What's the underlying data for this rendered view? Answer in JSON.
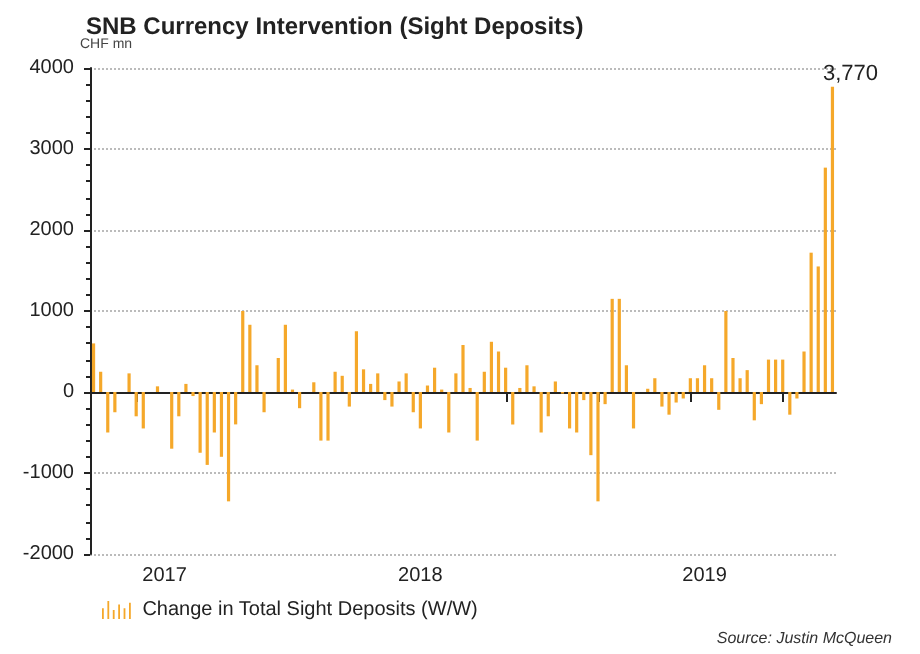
{
  "chart_data": {
    "type": "bar",
    "title": "SNB Currency Intervention (Sight Deposits)",
    "ylabel": "CHF mn",
    "categories": [
      null,
      null,
      null,
      null,
      null,
      null,
      null,
      null,
      null,
      null,
      "2017",
      null,
      null,
      null,
      null,
      null,
      null,
      null,
      null,
      null,
      null,
      null,
      null,
      null,
      null,
      null,
      null,
      null,
      null,
      null,
      null,
      null,
      null,
      null,
      null,
      null,
      null,
      null,
      null,
      null,
      null,
      null,
      null,
      null,
      null,
      null,
      "2018",
      null,
      null,
      null,
      null,
      null,
      null,
      null,
      null,
      null,
      null,
      null,
      null,
      null,
      null,
      null,
      null,
      null,
      null,
      null,
      null,
      null,
      null,
      null,
      null,
      null,
      null,
      null,
      null,
      null,
      null,
      null,
      null,
      null,
      null,
      null,
      null,
      null,
      null,
      null,
      "2019",
      null,
      null,
      null,
      null,
      null,
      null,
      null,
      null,
      null,
      null,
      null,
      null,
      null,
      null,
      null,
      null,
      null,
      null
    ],
    "series": [
      {
        "name": "Change in Total Sight Deposits (W/W)",
        "color": "#f5a82a",
        "values": [
          600,
          250,
          -500,
          -250,
          null,
          230,
          -300,
          -450,
          null,
          70,
          null,
          -700,
          -300,
          100,
          -50,
          -750,
          -900,
          -500,
          -800,
          -1350,
          -400,
          1000,
          830,
          330,
          -250,
          null,
          420,
          830,
          30,
          -200,
          null,
          120,
          -600,
          -600,
          250,
          200,
          -180,
          750,
          280,
          100,
          230,
          -100,
          -180,
          130,
          230,
          -250,
          -450,
          80,
          300,
          30,
          -500,
          230,
          580,
          50,
          -600,
          250,
          620,
          500,
          300,
          -400,
          50,
          330,
          70,
          -500,
          -300,
          130,
          -20,
          -450,
          -500,
          -100,
          -780,
          -1350,
          -150,
          1150,
          1150,
          330,
          -450,
          null,
          40,
          170,
          -180,
          -280,
          -130,
          -80,
          170,
          170,
          330,
          170,
          -220,
          1000,
          420,
          170,
          270,
          -350,
          -150,
          400,
          400,
          400,
          -280,
          -80,
          500,
          1720,
          1550,
          2770,
          3770
        ],
        "value_labels": [
          null,
          null,
          null,
          null,
          null,
          null,
          null,
          null,
          null,
          null,
          null,
          null,
          null,
          null,
          null,
          null,
          null,
          null,
          null,
          null,
          null,
          null,
          null,
          null,
          null,
          null,
          null,
          null,
          null,
          null,
          null,
          null,
          null,
          null,
          null,
          null,
          null,
          null,
          null,
          null,
          null,
          null,
          null,
          null,
          null,
          null,
          null,
          null,
          null,
          null,
          null,
          null,
          null,
          null,
          null,
          null,
          null,
          null,
          null,
          null,
          null,
          null,
          null,
          null,
          null,
          null,
          null,
          null,
          null,
          null,
          null,
          null,
          null,
          null,
          null,
          null,
          null,
          null,
          null,
          null,
          null,
          null,
          null,
          null,
          null,
          null,
          null,
          null,
          null,
          null,
          null,
          null,
          null,
          null,
          null,
          null,
          null,
          null,
          null,
          null,
          null,
          null,
          null,
          null,
          "3,770"
        ]
      }
    ],
    "ylim": [
      -2000,
      4000
    ],
    "yticks": [
      -2000,
      -1000,
      0,
      1000,
      2000,
      3000,
      4000
    ],
    "grid": "y",
    "legend": "bottom left",
    "annotations": [
      "Source: Justin McQueen"
    ]
  }
}
